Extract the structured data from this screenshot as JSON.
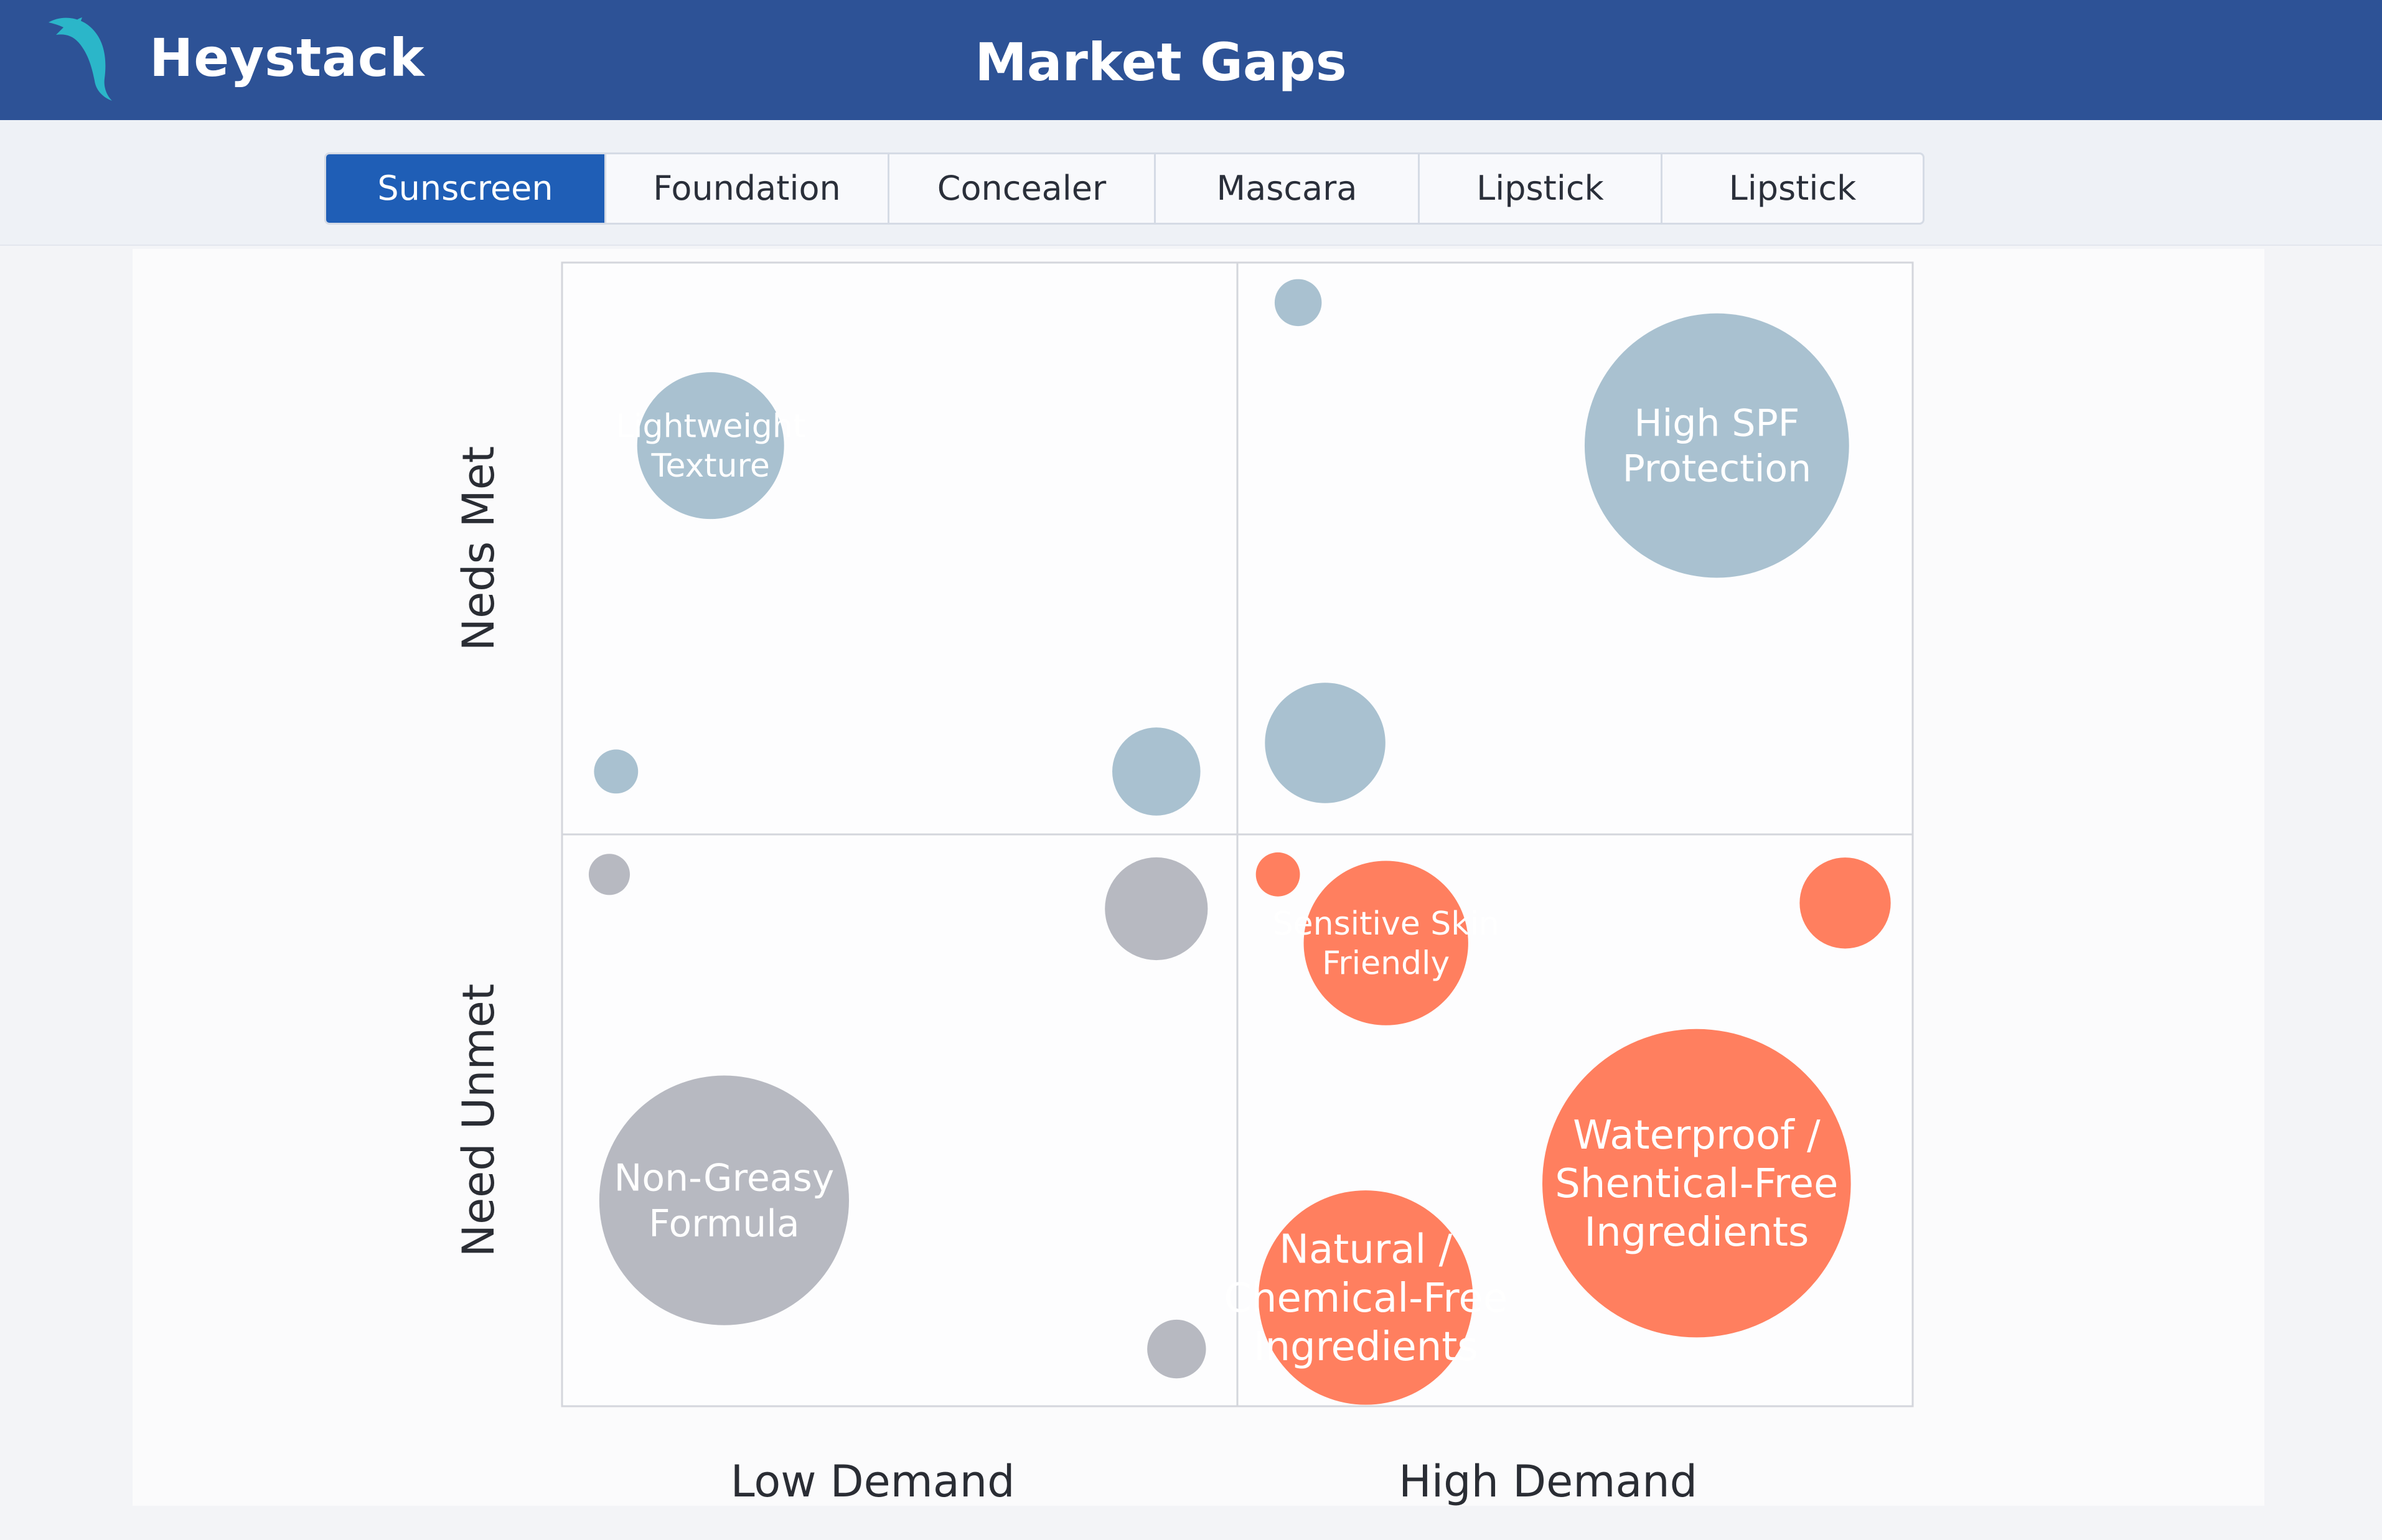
{
  "app": {
    "brand": "Heystack",
    "logo_icon": "dolphin-icon",
    "page_title": "Market Gaps"
  },
  "colors": {
    "header_bg": "#2d5296",
    "tab_active_bg": "#1f5eb6",
    "needs_met": "#a9c1d0",
    "need_unmet_low": "#b7b9c1",
    "need_unmet_high": "#ff7f5f",
    "logo": "#2bb6c9"
  },
  "tabs": [
    {
      "label": "Sunscreen",
      "active": true
    },
    {
      "label": "Foundation",
      "active": false
    },
    {
      "label": "Concealer",
      "active": false
    },
    {
      "label": "Mascara",
      "active": false
    },
    {
      "label": "Lipstick",
      "active": false
    },
    {
      "label": "Lipstick",
      "active": false
    }
  ],
  "chart_data": {
    "type": "scatter",
    "subtype": "bubble-quadrant",
    "x_categories": [
      "Low Demand",
      "High Demand"
    ],
    "y_categories": [
      "Neds Met",
      "Need Unmet"
    ],
    "xlim": [
      0,
      2
    ],
    "ylim": [
      0,
      2
    ],
    "xlabel": "",
    "ylabel": "",
    "grid": true,
    "legend": "none",
    "bubbles": [
      {
        "label": [
          "Lightweight",
          "Texture"
        ],
        "x": 0.22,
        "y": 1.68,
        "size": 0.5,
        "group": "needs_met"
      },
      {
        "label": [],
        "x": 0.08,
        "y": 1.11,
        "size": 0.15,
        "group": "needs_met"
      },
      {
        "label": [],
        "x": 0.88,
        "y": 1.11,
        "size": 0.3,
        "group": "needs_met"
      },
      {
        "label": [],
        "x": 1.09,
        "y": 1.93,
        "size": 0.16,
        "group": "needs_met"
      },
      {
        "label": [
          "High SPF",
          "Protection"
        ],
        "x": 1.71,
        "y": 1.68,
        "size": 0.9,
        "group": "needs_met"
      },
      {
        "label": [],
        "x": 1.13,
        "y": 1.16,
        "size": 0.41,
        "group": "needs_met"
      },
      {
        "label": [],
        "x": 0.07,
        "y": 0.93,
        "size": 0.14,
        "group": "need_unmet_low"
      },
      {
        "label": [],
        "x": 0.88,
        "y": 0.87,
        "size": 0.35,
        "group": "need_unmet_low"
      },
      {
        "label": [
          "Non-Greasy",
          "Formula"
        ],
        "x": 0.24,
        "y": 0.36,
        "size": 0.85,
        "group": "need_unmet_low"
      },
      {
        "label": [],
        "x": 0.91,
        "y": 0.1,
        "size": 0.2,
        "group": "need_unmet_low"
      },
      {
        "label": [],
        "x": 1.06,
        "y": 0.93,
        "size": 0.15,
        "group": "need_unmet_high"
      },
      {
        "label": [
          "Sensitive Skin",
          "Friendly"
        ],
        "x": 1.22,
        "y": 0.81,
        "size": 0.56,
        "group": "need_unmet_high"
      },
      {
        "label": [],
        "x": 1.9,
        "y": 0.88,
        "size": 0.31,
        "group": "need_unmet_high"
      },
      {
        "label": [
          "Waterproof /",
          "Shentical-Free",
          "Ingredients"
        ],
        "x": 1.68,
        "y": 0.39,
        "size": 1.05,
        "group": "need_unmet_high"
      },
      {
        "label": [
          "Natural /",
          "Chemical-Free",
          "Ingredients"
        ],
        "x": 1.19,
        "y": 0.19,
        "size": 0.73,
        "group": "need_unmet_high"
      }
    ]
  }
}
